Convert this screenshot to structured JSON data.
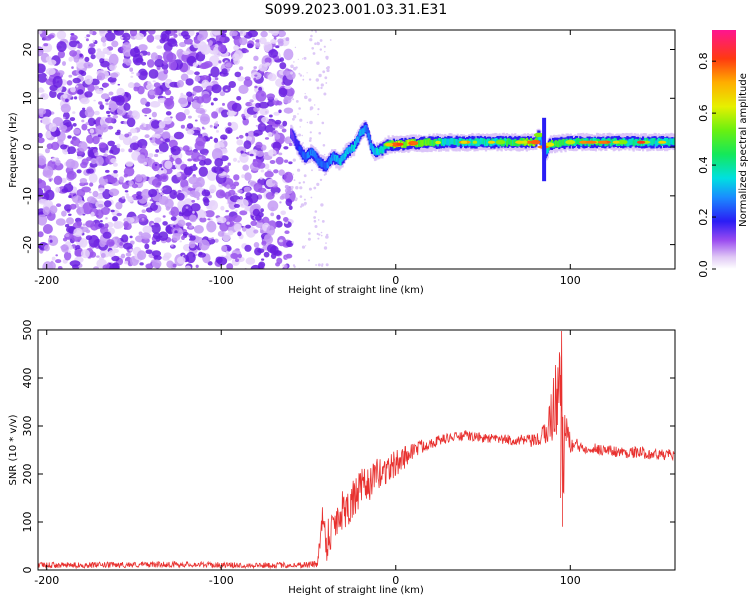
{
  "title": "S099.2023.001.03.31.E31",
  "colors": {
    "snr_line": "#e8312f",
    "speckle": "#8a2be2",
    "frame": "#000000"
  },
  "chart_data": [
    {
      "type": "heatmap",
      "xlabel": "Height of straight line (km)",
      "ylabel": "Frequency (Hz)",
      "xlim": [
        -205,
        160
      ],
      "ylim": [
        -25,
        24
      ],
      "xticks": [
        -200,
        -100,
        0,
        100
      ],
      "yticks": [
        -20,
        -10,
        0,
        10,
        20
      ],
      "colorbar": {
        "label": "Normalized spectral amplitude",
        "range": [
          0.0,
          0.92
        ],
        "ticks": [
          "0.0",
          "0.2",
          "0.4",
          "0.6",
          "0.8"
        ],
        "colormap": "rainbow (white-violet-blue-cyan-green-yellow-orange-red-magenta)"
      },
      "noise_region_x": [
        -205,
        -60
      ],
      "track": {
        "x": [
          -60,
          -56,
          -52,
          -48,
          -44,
          -40,
          -36,
          -32,
          -28,
          -24,
          -20,
          -17,
          -14,
          -12,
          -8,
          -4,
          0,
          10,
          30,
          60,
          80,
          82,
          84,
          86,
          88,
          100,
          130,
          160
        ],
        "y": [
          3,
          0,
          -2,
          -1,
          -3,
          -4,
          -2,
          -3,
          -1,
          0,
          3,
          4,
          0,
          -1,
          -0.5,
          0.5,
          0.5,
          0.8,
          1,
          1,
          1,
          2.5,
          0.5,
          -1.5,
          0.5,
          1,
          1,
          1
        ],
        "amp": [
          0.2,
          0.3,
          0.35,
          0.4,
          0.35,
          0.4,
          0.45,
          0.5,
          0.5,
          0.5,
          0.45,
          0.4,
          0.45,
          0.5,
          0.55,
          0.6,
          0.85,
          0.85,
          0.55,
          0.6,
          0.85,
          0.6,
          0.4,
          0.35,
          0.7,
          0.65,
          0.6,
          0.55
        ]
      }
    },
    {
      "type": "line",
      "xlabel": "Height of straight line (km)",
      "ylabel": "SNR (10 * v/v)",
      "xlim": [
        -205,
        160
      ],
      "ylim": [
        0,
        500
      ],
      "xticks": [
        -200,
        -100,
        0,
        100
      ],
      "yticks": [
        0,
        100,
        200,
        300,
        400,
        500
      ],
      "series": [
        {
          "x": [
            -205,
            -180,
            -150,
            -120,
            -100,
            -80,
            -60,
            -45,
            -42,
            -40,
            -35,
            -30,
            -25,
            -20,
            -15,
            -10,
            -5,
            0,
            10,
            20,
            30,
            40,
            50,
            60,
            70,
            80,
            85,
            88,
            90,
            92,
            94,
            96,
            98,
            100,
            110,
            120,
            130,
            140,
            150,
            160
          ],
          "y": [
            10,
            10,
            11,
            12,
            10,
            10,
            10,
            12,
            110,
            60,
            100,
            130,
            140,
            170,
            180,
            200,
            210,
            220,
            250,
            265,
            275,
            280,
            275,
            272,
            270,
            268,
            280,
            310,
            330,
            360,
            420,
            230,
            300,
            260,
            255,
            250,
            245,
            245,
            240,
            240
          ],
          "noise": [
            6,
            6,
            6,
            6,
            6,
            6,
            6,
            8,
            30,
            45,
            45,
            45,
            45,
            40,
            35,
            35,
            30,
            30,
            18,
            12,
            10,
            10,
            10,
            10,
            12,
            14,
            25,
            45,
            70,
            90,
            60,
            90,
            40,
            18,
            12,
            12,
            12,
            12,
            12,
            12
          ]
        }
      ]
    }
  ]
}
